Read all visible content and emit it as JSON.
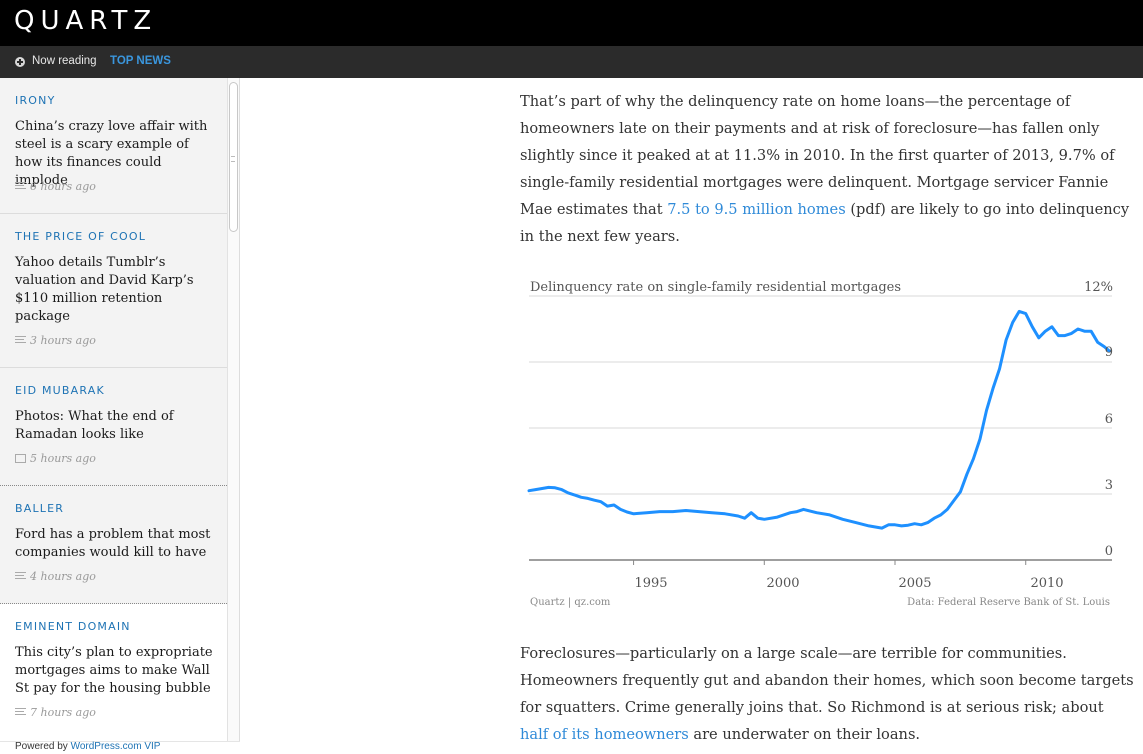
{
  "header": {
    "logo": "QUARTZ",
    "now_reading": "Now reading",
    "section": "TOP NEWS"
  },
  "sidebar": {
    "items": [
      {
        "kicker": "IRONY",
        "headline": "China’s crazy love affair with steel is a scary example of how its finances could implode",
        "time": "6 hours ago",
        "icon": "article-lines-icon"
      },
      {
        "kicker": "THE PRICE OF COOL",
        "headline": "Yahoo details Tumblr’s valuation and David Karp’s $110 million retention package",
        "time": "3 hours ago",
        "icon": "article-lines-icon"
      },
      {
        "kicker": "EID MUBARAK",
        "headline": "Photos: What the end of Ramadan looks like",
        "time": "5 hours ago",
        "icon": "gallery-icon"
      },
      {
        "kicker": "BALLER",
        "headline": "Ford has a problem that most companies would kill to have",
        "time": "4 hours ago",
        "icon": "article-lines-icon"
      },
      {
        "kicker": "EMINENT DOMAIN",
        "headline": "This city’s plan to expropriate mortgages aims to make Wall St pay for the housing bubble",
        "time": "7 hours ago",
        "icon": "article-lines-icon"
      }
    ],
    "powered_prefix": "Powered by ",
    "powered_link": "WordPress.com VIP"
  },
  "article": {
    "p1_before": "That’s part of why the delinquency rate on home loans—the percentage of homeowners late on their payments and at risk of foreclosure—has fallen only slightly since it peaked at at 11.3% in 2010. In the first quarter of 2013, 9.7% of single-family residential mortgages were delinquent. Mortgage servicer Fannie Mae estimates that ",
    "p1_link": "7.5 to 9.5 million homes",
    "p1_after": " (pdf) are likely to go into delinquency in the next few years.",
    "p2_before": "Foreclosures—particularly on a large scale—are terrible for communities. Homeowners frequently gut and abandon their homes, which soon become targets for squatters. Crime generally joins that. So Richmond is at serious risk; about ",
    "p2_link": "half of its homeowners",
    "p2_after": " are underwater on their loans."
  },
  "chart_data": {
    "type": "line",
    "title": "Delinquency rate on single-family residential mortgages",
    "ytick_labels": [
      "12%",
      "9",
      "6",
      "3",
      "0"
    ],
    "yticks": [
      12,
      9,
      6,
      3,
      0
    ],
    "ylim": [
      0,
      12
    ],
    "xlim": [
      1991.0,
      2013.3
    ],
    "xticks": [
      1995,
      2000,
      2005,
      2010
    ],
    "credit": "Quartz | qz.com",
    "source": "Data: Federal Reserve Bank of St. Louis",
    "line_color": "#1e90ff",
    "grid": true,
    "series": [
      {
        "x": [
          1991.0,
          1991.25,
          1991.5,
          1991.75,
          1992.0,
          1992.25,
          1992.5,
          1992.75,
          1993.0,
          1993.25,
          1993.5,
          1993.75,
          1994.0,
          1994.25,
          1994.5,
          1994.75,
          1995.0,
          1995.5,
          1996.0,
          1996.5,
          1997.0,
          1997.5,
          1998.0,
          1998.5,
          1999.0,
          1999.25,
          1999.5,
          1999.75,
          2000.0,
          2000.5,
          2001.0,
          2001.25,
          2001.5,
          2002.0,
          2002.5,
          2003.0,
          2003.5,
          2004.0,
          2004.25,
          2004.5,
          2004.75,
          2005.0,
          2005.25,
          2005.5,
          2005.75,
          2006.0,
          2006.25,
          2006.5,
          2006.75,
          2007.0,
          2007.25,
          2007.5,
          2007.75,
          2008.0,
          2008.25,
          2008.5,
          2008.75,
          2009.0,
          2009.25,
          2009.5,
          2009.75,
          2010.0,
          2010.25,
          2010.5,
          2010.75,
          2011.0,
          2011.25,
          2011.5,
          2011.75,
          2012.0,
          2012.25,
          2012.5,
          2012.75,
          2013.0,
          2013.2
        ],
        "y": [
          3.15,
          3.2,
          3.25,
          3.3,
          3.28,
          3.2,
          3.05,
          2.95,
          2.85,
          2.8,
          2.72,
          2.65,
          2.45,
          2.5,
          2.3,
          2.18,
          2.1,
          2.15,
          2.2,
          2.2,
          2.25,
          2.2,
          2.15,
          2.1,
          2.0,
          1.9,
          2.15,
          1.9,
          1.85,
          1.95,
          2.15,
          2.2,
          2.3,
          2.15,
          2.05,
          1.85,
          1.7,
          1.55,
          1.5,
          1.45,
          1.6,
          1.6,
          1.55,
          1.58,
          1.65,
          1.6,
          1.7,
          1.9,
          2.05,
          2.3,
          2.7,
          3.1,
          3.9,
          4.6,
          5.5,
          6.8,
          7.8,
          8.7,
          10.0,
          10.8,
          11.3,
          11.2,
          10.6,
          10.1,
          10.4,
          10.6,
          10.2,
          10.2,
          10.3,
          10.5,
          10.4,
          10.4,
          9.9,
          9.7,
          9.5
        ]
      }
    ]
  }
}
